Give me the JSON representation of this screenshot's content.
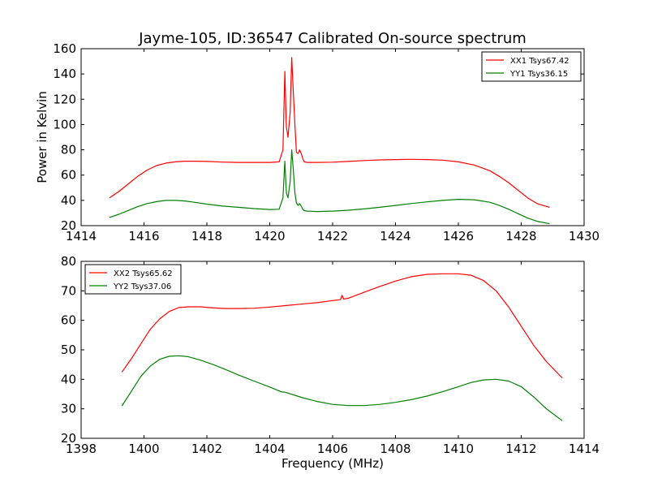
{
  "chart_data": [
    {
      "type": "line",
      "title": "Jayme-105, ID:36547 Calibrated On-source spectrum",
      "xlabel": "",
      "ylabel": "Power in Kelvin",
      "xlim": [
        1414,
        1430
      ],
      "ylim": [
        20,
        160
      ],
      "xticks": [
        "1414",
        "1416",
        "1418",
        "1420",
        "1422",
        "1424",
        "1426",
        "1428",
        "1430"
      ],
      "yticks": [
        "20",
        "40",
        "60",
        "80",
        "100",
        "120",
        "140",
        "160"
      ],
      "legend_position": "top-right",
      "grid": false,
      "series": [
        {
          "name": "XX1 Tsys67.42",
          "color": "#ff0000",
          "x": [
            1414.9,
            1415.2,
            1415.5,
            1415.8,
            1416.1,
            1416.4,
            1416.7,
            1417.0,
            1417.3,
            1417.6,
            1418.0,
            1418.5,
            1419.0,
            1419.5,
            1420.0,
            1420.3,
            1420.42,
            1420.48,
            1420.53,
            1420.58,
            1420.65,
            1420.7,
            1420.75,
            1420.8,
            1420.85,
            1420.9,
            1420.95,
            1421.0,
            1421.05,
            1421.1,
            1421.2,
            1421.5,
            1422.0,
            1422.5,
            1423.0,
            1423.5,
            1424.0,
            1424.5,
            1425.0,
            1425.5,
            1426.0,
            1426.5,
            1427.0,
            1427.3,
            1427.6,
            1427.9,
            1428.2,
            1428.5,
            1428.9
          ],
          "y": [
            42,
            47,
            53,
            59,
            64,
            67.5,
            69.5,
            70.5,
            71,
            71,
            70.8,
            70.3,
            70,
            70,
            70,
            70.5,
            80,
            142,
            98,
            90,
            110,
            153,
            125,
            100,
            78,
            77,
            80,
            77,
            73,
            70.5,
            70,
            70,
            70.2,
            70.8,
            71.5,
            72,
            72.3,
            72.5,
            72.3,
            71.8,
            70.5,
            68,
            63.5,
            59,
            54,
            48,
            42,
            37.5,
            34.5
          ]
        },
        {
          "name": "YY1 Tsys36.15",
          "color": "#008000",
          "x": [
            1414.9,
            1415.2,
            1415.5,
            1415.8,
            1416.1,
            1416.4,
            1416.7,
            1417.0,
            1417.3,
            1417.6,
            1418.0,
            1418.5,
            1419.0,
            1419.5,
            1420.0,
            1420.3,
            1420.42,
            1420.48,
            1420.53,
            1420.58,
            1420.65,
            1420.7,
            1420.75,
            1420.8,
            1420.85,
            1420.9,
            1420.95,
            1421.0,
            1421.05,
            1421.1,
            1421.2,
            1421.5,
            1422.0,
            1422.5,
            1423.0,
            1423.5,
            1424.0,
            1424.5,
            1425.0,
            1425.5,
            1426.0,
            1426.5,
            1427.0,
            1427.3,
            1427.6,
            1427.9,
            1428.2,
            1428.5,
            1428.9
          ],
          "y": [
            26.5,
            29,
            32,
            35,
            37.5,
            39,
            40,
            40,
            39.5,
            38.5,
            37,
            35.5,
            34.5,
            33.5,
            32.8,
            33,
            42,
            71,
            46,
            42,
            55,
            80,
            64,
            46,
            38,
            36,
            37.5,
            35.5,
            33,
            31.8,
            31.5,
            31.2,
            31.5,
            32.2,
            33.2,
            34.5,
            36,
            37.5,
            38.8,
            40,
            40.8,
            40.5,
            38.5,
            36,
            33,
            29.5,
            26,
            23.5,
            21.5
          ]
        }
      ]
    },
    {
      "type": "line",
      "title": "",
      "xlabel": "Frequency (MHz)",
      "ylabel": "",
      "xlim": [
        1398,
        1414
      ],
      "ylim": [
        20,
        80
      ],
      "xticks": [
        "1398",
        "1400",
        "1402",
        "1404",
        "1406",
        "1408",
        "1410",
        "1412",
        "1414"
      ],
      "yticks": [
        "20",
        "30",
        "40",
        "50",
        "60",
        "70",
        "80"
      ],
      "legend_position": "top-left",
      "grid": false,
      "series": [
        {
          "name": "XX2 Tsys65.62",
          "color": "#ff0000",
          "x": [
            1399.3,
            1399.6,
            1399.9,
            1400.2,
            1400.5,
            1400.8,
            1401.1,
            1401.4,
            1401.8,
            1402.2,
            1402.6,
            1403.0,
            1403.5,
            1404.0,
            1404.5,
            1405.0,
            1405.5,
            1406.0,
            1406.25,
            1406.3,
            1406.35,
            1406.5,
            1407.0,
            1407.5,
            1408.0,
            1408.5,
            1409.0,
            1409.5,
            1410.0,
            1410.4,
            1410.8,
            1411.2,
            1411.6,
            1412.0,
            1412.4,
            1412.8,
            1413.3
          ],
          "y": [
            42.5,
            47,
            52,
            57,
            60.5,
            63,
            64.3,
            64.6,
            64.6,
            64.2,
            64,
            64,
            64.1,
            64.5,
            65,
            65.5,
            66,
            66.7,
            67,
            68.5,
            67.2,
            67.5,
            69.5,
            71.5,
            73.3,
            74.8,
            75.6,
            75.8,
            75.8,
            75.3,
            73.5,
            70,
            64.5,
            58,
            51.5,
            46,
            40.5
          ]
        },
        {
          "name": "YY2 Tsys37.06",
          "color": "#008000",
          "x": [
            1399.3,
            1399.6,
            1399.9,
            1400.2,
            1400.5,
            1400.8,
            1401.1,
            1401.4,
            1401.8,
            1402.2,
            1402.6,
            1403.0,
            1403.5,
            1404.0,
            1404.25,
            1404.3,
            1404.35,
            1404.5,
            1405.0,
            1405.5,
            1406.0,
            1406.5,
            1407.0,
            1407.5,
            1408.0,
            1408.5,
            1409.0,
            1409.5,
            1410.0,
            1410.4,
            1410.8,
            1411.2,
            1411.6,
            1412.0,
            1412.4,
            1412.8,
            1413.3
          ],
          "y": [
            31,
            36,
            41,
            44.5,
            46.8,
            47.8,
            48,
            47.7,
            46.5,
            45,
            43.3,
            41.5,
            39.4,
            37.4,
            36.3,
            36.1,
            35.8,
            35.6,
            33.9,
            32.5,
            31.5,
            31.1,
            31.1,
            31.5,
            32.2,
            33.1,
            34.3,
            35.8,
            37.5,
            38.9,
            39.8,
            40,
            39.4,
            37.5,
            34,
            30,
            26
          ]
        }
      ]
    }
  ]
}
